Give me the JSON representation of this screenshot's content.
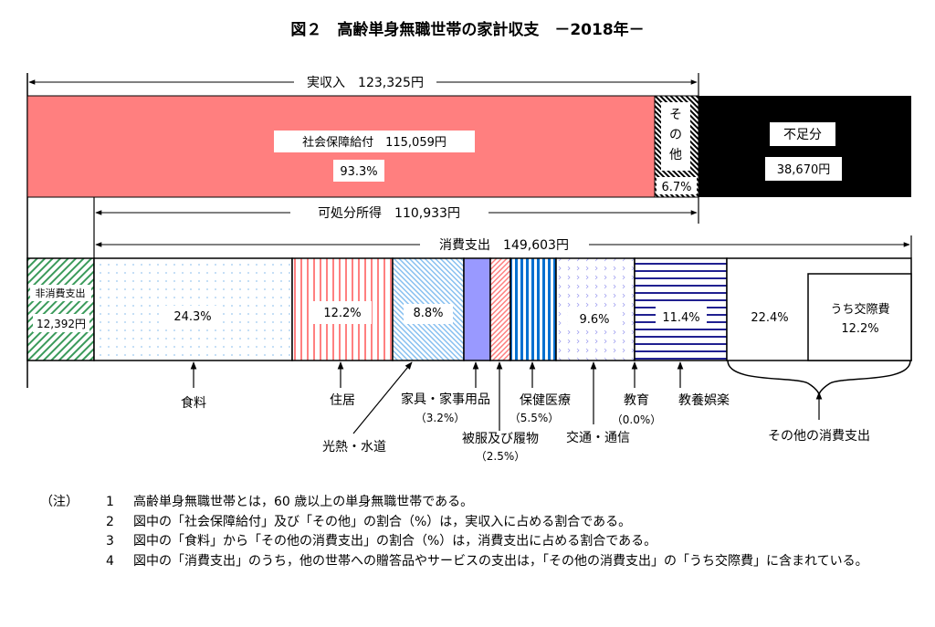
{
  "title": "図２　高齢単身無職世帯の家計収支　－2018年－",
  "income": {
    "label": "実収入　123,325円",
    "social_security": {
      "label": "社会保障給付　115,059円",
      "percent": "93.3%",
      "color": "#ff7f7f"
    },
    "other": {
      "label_chars": [
        "そ",
        "の",
        "他"
      ],
      "percent": "6.7%"
    },
    "shortfall": {
      "label": "不足分",
      "amount": "38,670円",
      "color": "#000000"
    }
  },
  "disposable_income": {
    "label": "可処分所得　110,933円"
  },
  "consumption": {
    "label": "消費支出　149,603円"
  },
  "non_consumption": {
    "label": "非消費支出",
    "amount": "12,392円",
    "color": "#3a9a5a"
  },
  "segments": [
    {
      "name": "食料",
      "percent": "24.3%",
      "color": "#9cc8f0"
    },
    {
      "name": "住居",
      "percent": "12.2%",
      "color": "#ff8080"
    },
    {
      "name": "光熱・水道",
      "percent": "8.8%",
      "color": "#88c0f0"
    },
    {
      "name": "家具・家事用品",
      "percent": "（3.2%）",
      "color": "#9999ff"
    },
    {
      "name": "被服及び履物",
      "percent": "（2.5%）",
      "color": "#ff8080"
    },
    {
      "name": "保健医療",
      "percent": "（5.5%）",
      "color": "#0070d0"
    },
    {
      "name": "交通・通信",
      "percent": "9.6%",
      "color": "#8080e0"
    },
    {
      "name": "教育",
      "percent": "（0.0%）"
    },
    {
      "name": "教養娯楽",
      "percent": "11.4%",
      "color": "#202090"
    },
    {
      "name": "その他の消費支出",
      "percent": "22.4%",
      "sub_label": "うち交際費",
      "sub_percent": "12.2%"
    }
  ],
  "notes": {
    "head": "（注）",
    "items": [
      {
        "num": "1",
        "text": "高齢単身無職世帯とは，60 歳以上の単身無職世帯である。"
      },
      {
        "num": "2",
        "text": "図中の「社会保障給付」及び「その他」の割合（%）は，実収入に占める割合である。"
      },
      {
        "num": "3",
        "text": "図中の「食料」から「その他の消費支出」の割合（%）は，消費支出に占める割合である。"
      },
      {
        "num": "4",
        "text": "図中の「消費支出」のうち，他の世帯への贈答品やサービスの支出は，「その他の消費支出」の「うち交際費」に含まれている。"
      }
    ]
  }
}
